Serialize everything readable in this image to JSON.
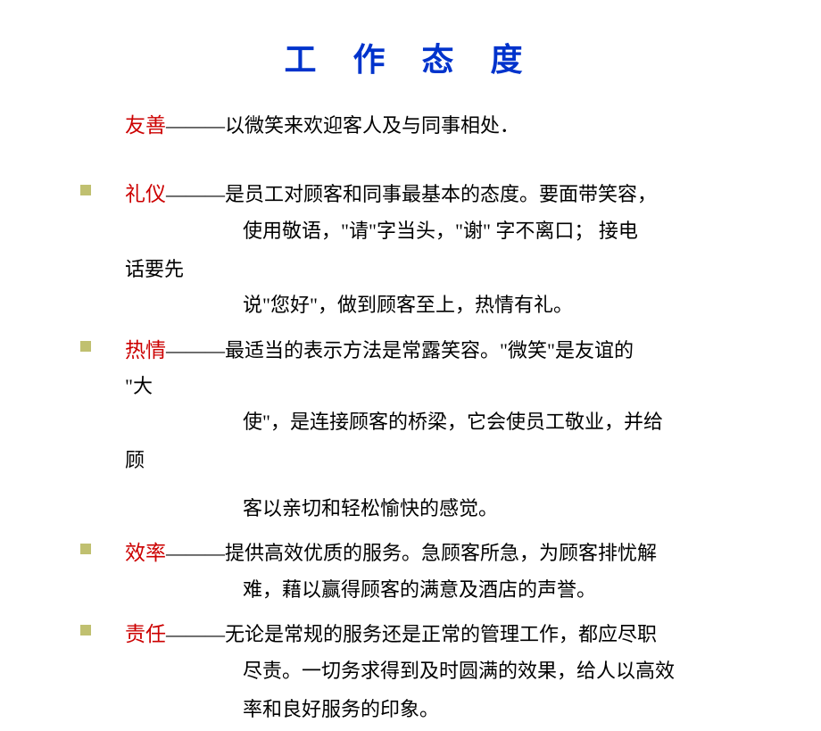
{
  "title": "工 作 态 度",
  "colors": {
    "title": "#0033cc",
    "term": "#cc0000",
    "text": "#000000",
    "bullet": "#c0c070",
    "background": "#ffffff"
  },
  "typography": {
    "title_fontsize": 36,
    "body_fontsize": 22,
    "term_fontsize": 23,
    "font_family": "SimSun"
  },
  "items": [
    {
      "term": "友善",
      "dash": "———",
      "text1": "以微笑来欢迎客人及与同事相处．",
      "has_bullet": false
    },
    {
      "term": "礼仪",
      "dash": "———",
      "text1": "是员工对顾客和同事最基本的态度。要面带笑容，",
      "line2": "使用敬语，\"请\"字当头，\"谢\" 字不离口； 接电",
      "hang2": "话要先",
      "line3": "说\"您好\"，做到顾客至上，热情有礼。",
      "has_bullet": true
    },
    {
      "term": "热情",
      "dash": "———",
      "text1": "最适当的表示方法是常露笑容。\"微笑\"是友谊的",
      "hang1": "\"大",
      "line2": "使\"，是连接顾客的桥梁，它会使员工敬业，并给",
      "hang2": "顾",
      "line3": " 客以亲切和轻松愉快的感觉。",
      "has_bullet": true
    },
    {
      "term": "效率",
      "dash": "———",
      "text1": "提供高效优质的服务。急顾客所急，为顾客排忧解",
      "line2": "难，藉以赢得顾客的满意及酒店的声誉。",
      "has_bullet": true
    },
    {
      "term": "责任",
      "dash": "———",
      "text1": "无论是常规的服务还是正常的管理工作，都应尽职",
      "line2": "尽责。一切务求得到及时圆满的效果，给人以高效",
      "line3": "率和良好服务的印象。",
      "has_bullet": true
    }
  ]
}
